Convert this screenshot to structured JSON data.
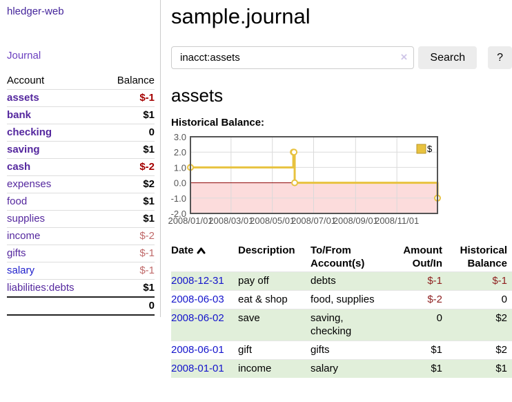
{
  "sidebar": {
    "brand": "hledger-web",
    "nav": {
      "journal": "Journal"
    },
    "accounts": {
      "col_account": "Account",
      "col_balance": "Balance",
      "rows": [
        {
          "name": "assets",
          "balance": "$-1"
        },
        {
          "name": "bank",
          "balance": "$1"
        },
        {
          "name": "checking",
          "balance": "0"
        },
        {
          "name": "saving",
          "balance": "$1"
        },
        {
          "name": "cash",
          "balance": "$-2"
        },
        {
          "name": "expenses",
          "balance": "$2"
        },
        {
          "name": "food",
          "balance": "$1"
        },
        {
          "name": "supplies",
          "balance": "$1"
        },
        {
          "name": "income",
          "balance": "$-2"
        },
        {
          "name": "gifts",
          "balance": "$-1"
        },
        {
          "name": "salary",
          "balance": "$-1"
        },
        {
          "name": "liabilities:debts",
          "balance": "$1"
        }
      ],
      "total": "0"
    }
  },
  "header": {
    "title": "sample.journal"
  },
  "search": {
    "value": "inacct:assets",
    "clear_icon": "×",
    "search_button": "Search",
    "help_button": "?"
  },
  "account_view": {
    "heading": "assets",
    "chart_title": "Historical Balance:"
  },
  "chart_data": {
    "type": "line",
    "title": "Historical Balance:",
    "series": [
      {
        "name": "$",
        "color": "#e8c23f",
        "step": true,
        "points": [
          [
            "2008-01-01",
            1
          ],
          [
            "2008-06-01",
            2
          ],
          [
            "2008-06-02",
            2
          ],
          [
            "2008-06-03",
            0
          ],
          [
            "2008-12-31",
            -1
          ]
        ]
      }
    ],
    "x_range": [
      "2008-01-01",
      "2008-12-31"
    ],
    "x_ticks": [
      "2008/01/01",
      "2008/03/01",
      "2008/05/01",
      "2008/07/01",
      "2008/09/01",
      "2008/11/01"
    ],
    "y_ticks": [
      3.0,
      2.0,
      1.0,
      0.0,
      -1.0,
      -2.0
    ],
    "ylim": [
      -2,
      3
    ],
    "grid": true,
    "negative_region_color": "#fcdcdc",
    "zero_line_color": "#8b0000",
    "legend": {
      "label": "$",
      "position": "top-right"
    }
  },
  "register": {
    "headers": {
      "date": "Date",
      "description": "Description",
      "tofrom_l1": "To/From",
      "tofrom_l2": "Account(s)",
      "amount_l1": "Amount",
      "amount_l2": "Out/In",
      "balance_l1": "Historical",
      "balance_l2": "Balance"
    },
    "rows": [
      {
        "date": "2008-12-31",
        "description": "pay off",
        "accounts": "debts",
        "amount": "$-1",
        "balance": "$-1"
      },
      {
        "date": "2008-06-03",
        "description": "eat & shop",
        "accounts": "food, supplies",
        "amount": "$-2",
        "balance": "0"
      },
      {
        "date": "2008-06-02",
        "description": "save",
        "accounts": "saving, checking",
        "amount": "0",
        "balance": "$2"
      },
      {
        "date": "2008-06-01",
        "description": "gift",
        "accounts": "gifts",
        "amount": "$1",
        "balance": "$2"
      },
      {
        "date": "2008-01-01",
        "description": "income",
        "accounts": "salary",
        "amount": "$1",
        "balance": "$1"
      }
    ]
  },
  "colors": {
    "accent_purple": "#54279e",
    "link_blue": "#1414cc",
    "negative_strong": "#a40000",
    "negative_soft": "#c06a6a",
    "row_highlight": "#e1efda",
    "series_gold": "#e8c23f"
  }
}
